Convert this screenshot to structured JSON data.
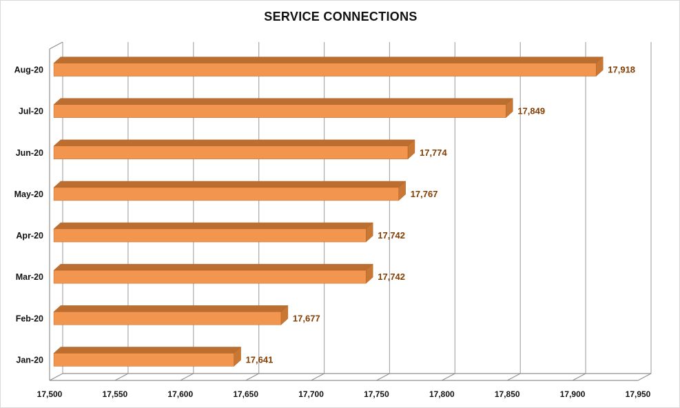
{
  "chart_data": {
    "type": "bar",
    "orientation": "horizontal",
    "style": "3d",
    "title": "SERVICE CONNECTIONS",
    "categories": [
      "Aug-20",
      "Jul-20",
      "Jun-20",
      "May-20",
      "Apr-20",
      "Mar-20",
      "Feb-20",
      "Jan-20"
    ],
    "values": [
      17918,
      17849,
      17774,
      17767,
      17742,
      17742,
      17677,
      17641
    ],
    "value_labels": [
      "17,918",
      "17,849",
      "17,774",
      "17,767",
      "17,742",
      "17,742",
      "17,677",
      "17,641"
    ],
    "x_axis": {
      "min": 17500,
      "max": 17950,
      "step": 50,
      "tick_labels": [
        "17,500",
        "17,550",
        "17,600",
        "17,650",
        "17,700",
        "17,750",
        "17,800",
        "17,850",
        "17,900",
        "17,950"
      ]
    },
    "y_axis_label": "",
    "x_axis_label": "",
    "legend": "none",
    "grid": true,
    "colors": {
      "bar_front": "#F2954E",
      "bar_top": "#BC6E31",
      "bar_side": "#C97734",
      "bar_edge": "#A9601F",
      "data_label": "#833C00",
      "gridline": "#A9A9A9",
      "frame": "#8F8F8F",
      "axis_text": "#111111",
      "title_text": "#101010",
      "background": "#FFFFFF"
    }
  }
}
